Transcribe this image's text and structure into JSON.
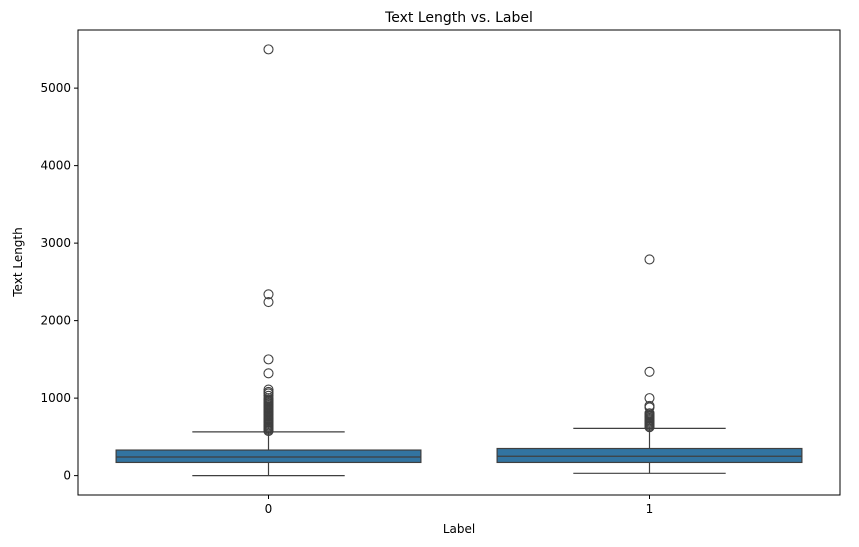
{
  "chart_data": {
    "type": "box",
    "title": "Text Length vs. Label",
    "xlabel": "Label",
    "ylabel": "Text Length",
    "ylim": [
      -250,
      5750
    ],
    "yticks": [
      0,
      1000,
      2000,
      3000,
      4000,
      5000
    ],
    "grid": false,
    "legend": "none",
    "box_color": "#3274a1",
    "line_color": "#3f3f3f",
    "categories": [
      "0",
      "1"
    ],
    "boxes": [
      {
        "category": "0",
        "whisker_low": 0,
        "q1": 170,
        "median": 240,
        "q3": 330,
        "whisker_high": 565,
        "outliers": [
          575,
          590,
          605,
          620,
          635,
          650,
          665,
          680,
          695,
          710,
          725,
          740,
          755,
          770,
          785,
          800,
          815,
          830,
          845,
          860,
          875,
          890,
          905,
          920,
          935,
          950,
          965,
          980,
          1000,
          1030,
          1060,
          1080,
          1110,
          1320,
          1500,
          2240,
          2340,
          5500
        ]
      },
      {
        "category": "1",
        "whisker_low": 30,
        "q1": 170,
        "median": 250,
        "q3": 350,
        "whisker_high": 610,
        "outliers": [
          625,
          640,
          655,
          670,
          685,
          700,
          715,
          730,
          745,
          760,
          775,
          790,
          805,
          880,
          900,
          1000,
          1340,
          2790
        ]
      }
    ]
  }
}
